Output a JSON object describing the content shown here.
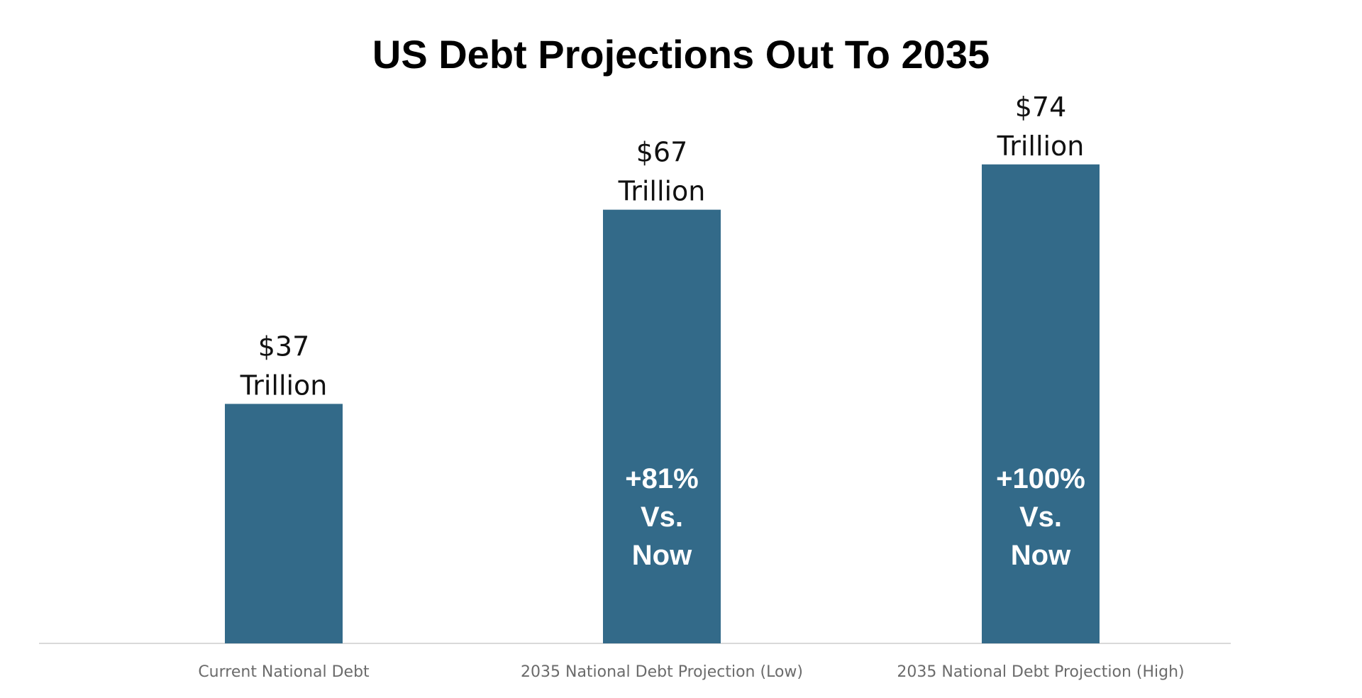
{
  "chart_data": {
    "type": "bar",
    "title": "US Debt Projections Out To 2035",
    "xlabel": "",
    "ylabel": "",
    "categories": [
      "Current National Debt",
      "2035 National Debt Projection (Low)",
      "2035 National Debt Projection (High)"
    ],
    "values": [
      37,
      67,
      74
    ],
    "value_labels": [
      [
        "$37",
        "Trillion"
      ],
      [
        "$67",
        "Trillion"
      ],
      [
        "$74",
        "Trillion"
      ]
    ],
    "annotations": [
      [],
      [
        "+81%",
        "Vs.",
        "Now"
      ],
      [
        "+100%",
        "Vs.",
        "Now"
      ]
    ],
    "ylim": [
      0,
      80
    ],
    "grid": false,
    "legend": "none",
    "bar_color": "#336a89",
    "axis_color": "#d9d9d9"
  }
}
